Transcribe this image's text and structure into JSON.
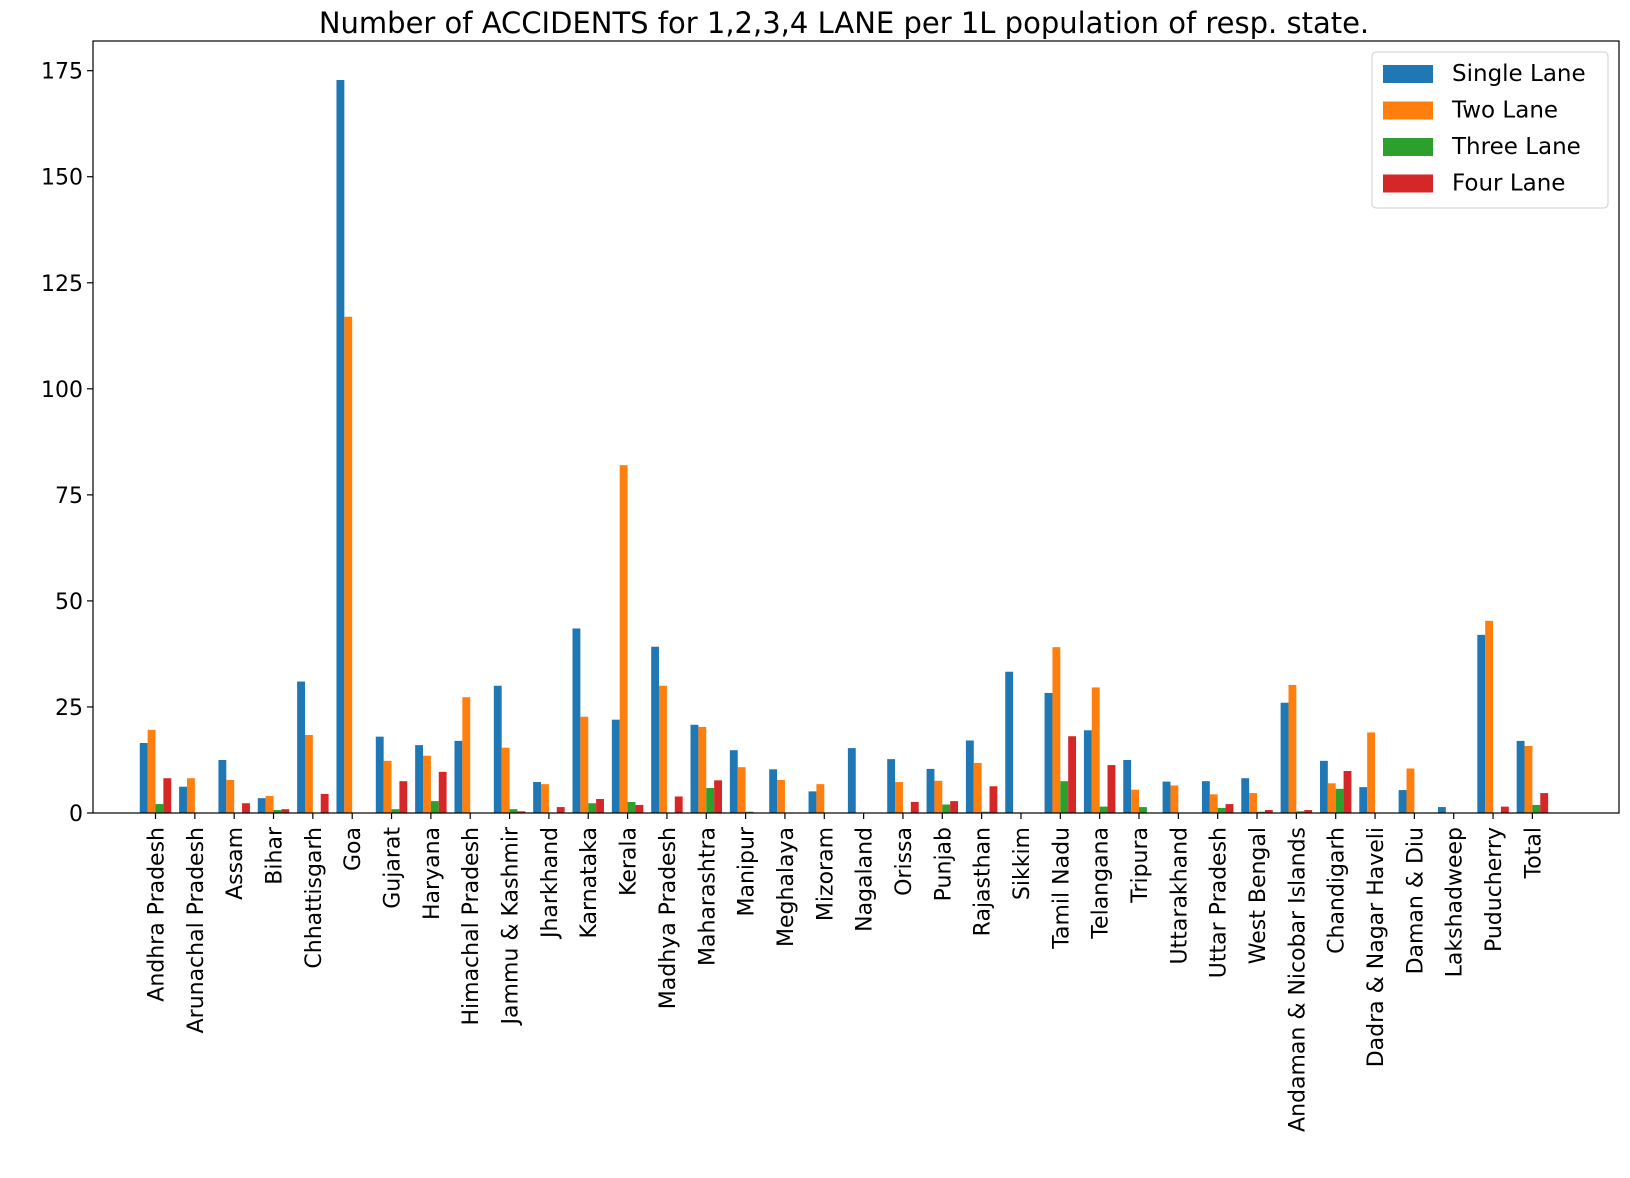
{
  "chart_data": {
    "type": "bar",
    "title": "Number of ACCIDENTS for 1,2,3,4 LANE per 1L population of resp. state.",
    "xlabel": "",
    "ylabel": "",
    "ylim": [
      0,
      182
    ],
    "yticks": [
      0,
      25,
      50,
      75,
      100,
      125,
      150,
      175
    ],
    "ytick_labels": [
      "0",
      "25",
      "50",
      "75",
      "100",
      "125",
      "150",
      "175"
    ],
    "legend_position": "top-right",
    "grid": false,
    "categories": [
      "Andhra Pradesh",
      "Arunachal Pradesh",
      "Assam",
      "Bihar",
      "Chhattisgarh",
      "Goa",
      "Gujarat",
      "Haryana",
      "Himachal Pradesh",
      "Jammu & Kashmir",
      "Jharkhand",
      "Karnataka",
      "Kerala",
      "Madhya Pradesh",
      "Maharashtra",
      "Manipur",
      "Meghalaya",
      "Mizoram",
      "Nagaland",
      "Orissa",
      "Punjab",
      "Rajasthan",
      "Sikkim",
      "Tamil Nadu",
      "Telangana",
      "Tripura",
      "Uttarakhand",
      "Uttar Pradesh",
      "West Bengal",
      "Andaman & Nicobar Islands",
      "Chandigarh",
      "Dadra & Nagar Haveli",
      "Daman & Diu",
      "Lakshadweep",
      "Puducherry",
      "Total"
    ],
    "series": [
      {
        "name": "Single Lane",
        "color": "#1f77b4",
        "values": [
          16.5,
          6.2,
          12.5,
          3.5,
          31.0,
          172.8,
          18.0,
          16.0,
          17.0,
          30.0,
          7.3,
          43.5,
          22.0,
          39.2,
          20.8,
          14.8,
          10.3,
          5.1,
          15.3,
          12.7,
          10.4,
          17.1,
          33.3,
          28.3,
          19.5,
          12.5,
          7.4,
          7.5,
          8.2,
          26.0,
          12.3,
          6.1,
          5.4,
          1.4,
          42.0,
          17.0
        ]
      },
      {
        "name": "Two Lane",
        "color": "#ff7f0e",
        "values": [
          19.6,
          8.2,
          7.8,
          4.0,
          18.4,
          117.0,
          12.3,
          13.5,
          27.3,
          15.4,
          6.8,
          22.7,
          82.0,
          30.0,
          20.3,
          10.8,
          7.8,
          6.8,
          0,
          7.3,
          7.6,
          11.8,
          0,
          39.1,
          29.6,
          5.5,
          6.5,
          4.4,
          4.7,
          30.2,
          7.0,
          19.0,
          10.5,
          0,
          45.3,
          15.8
        ]
      },
      {
        "name": "Three Lane",
        "color": "#2ca02c",
        "values": [
          2.1,
          0,
          0,
          0.7,
          0,
          0,
          0.9,
          2.8,
          0,
          0.9,
          0,
          2.3,
          2.6,
          0,
          5.9,
          0.3,
          0,
          0,
          0,
          0,
          2.0,
          0.3,
          0,
          7.5,
          1.5,
          1.4,
          0,
          1.2,
          0.3,
          0.4,
          5.7,
          0,
          0,
          0,
          0,
          1.9
        ]
      },
      {
        "name": "Four Lane",
        "color": "#d62728",
        "values": [
          8.2,
          0,
          2.3,
          0.9,
          4.5,
          0,
          7.5,
          9.7,
          0,
          0.4,
          1.4,
          3.3,
          1.9,
          3.9,
          7.7,
          0,
          0,
          0,
          0,
          2.6,
          2.8,
          6.3,
          0,
          18.1,
          11.3,
          0,
          0,
          2.1,
          0.7,
          0.7,
          9.9,
          0,
          0,
          0,
          1.5,
          4.7
        ]
      }
    ]
  }
}
